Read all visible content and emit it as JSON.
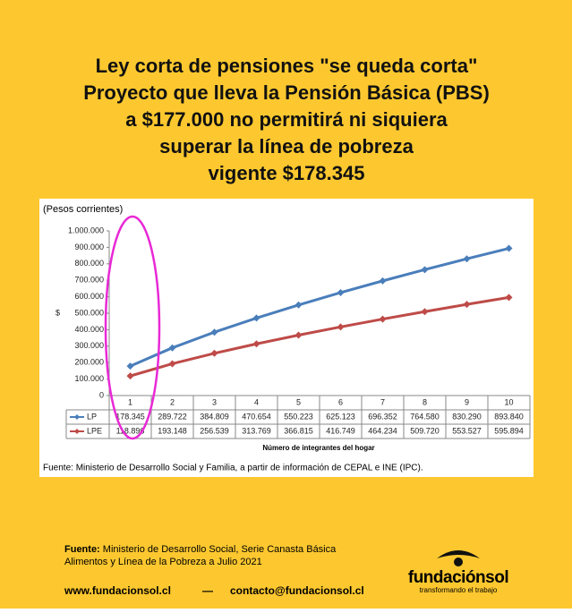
{
  "title_lines": [
    "Ley corta de pensiones \"se queda corta\"",
    "Proyecto que lleva la Pensión Básica (PBS)",
    "a $177.000 no permitirá ni siquiera",
    "superar la línea de pobreza",
    "vigente $178.345"
  ],
  "chart_data": {
    "type": "line",
    "unit_label": "(Pesos corrientes)",
    "y_label": "$",
    "x_label": "Número de integrantes del hogar",
    "source": "Fuente: Ministerio de Desarrollo Social y Familia, a partir de información de CEPAL e INE (IPC).",
    "categories": [
      "1",
      "2",
      "3",
      "4",
      "5",
      "6",
      "7",
      "8",
      "9",
      "10"
    ],
    "series": [
      {
        "name": "LP",
        "color": "#4a7ebb",
        "values": [
          178345,
          289722,
          384809,
          470654,
          550223,
          625123,
          696352,
          764580,
          830290,
          893840
        ],
        "value_labels": [
          "178.345",
          "289.722",
          "384.809",
          "470.654",
          "550.223",
          "625.123",
          "696.352",
          "764.580",
          "830.290",
          "893.840"
        ]
      },
      {
        "name": "LPE",
        "color": "#be4b48",
        "values": [
          118896,
          193148,
          256539,
          313769,
          366815,
          416749,
          464234,
          509720,
          553527,
          595894
        ],
        "value_labels": [
          "118.896",
          "193.148",
          "256.539",
          "313.769",
          "366.815",
          "416.749",
          "464.234",
          "509.720",
          "553.527",
          "595.894"
        ]
      }
    ],
    "ylim": [
      0,
      1000000
    ],
    "yticks": [
      0,
      {
        "value": 100000,
        "label": "100.000"
      },
      {
        "value": 200000,
        "label": "200.000"
      },
      {
        "value": 300000,
        "label": "300.000"
      },
      {
        "value": 400000,
        "label": "400.000"
      },
      {
        "value": 500000,
        "label": "500.000"
      },
      {
        "value": 600000,
        "label": "600.000"
      },
      {
        "value": 700000,
        "label": "700.000"
      },
      {
        "value": 800000,
        "label": "800.000"
      },
      {
        "value": 900000,
        "label": "900.000"
      },
      {
        "value": 1000000,
        "label": "1.000.000"
      }
    ]
  },
  "footer": {
    "source_label": "Fuente:",
    "source_lines": [
      "Ministerio de Desarrollo Social, Serie Canasta Básica",
      "Alimentos y Línea de la Pobreza a Julio 2021"
    ],
    "website": "www.fundacionsol.cl",
    "separator": "—",
    "email": "contacto@fundacionsol.cl",
    "brand": "fundaciónsol",
    "tagline": "transformando el trabajo"
  }
}
